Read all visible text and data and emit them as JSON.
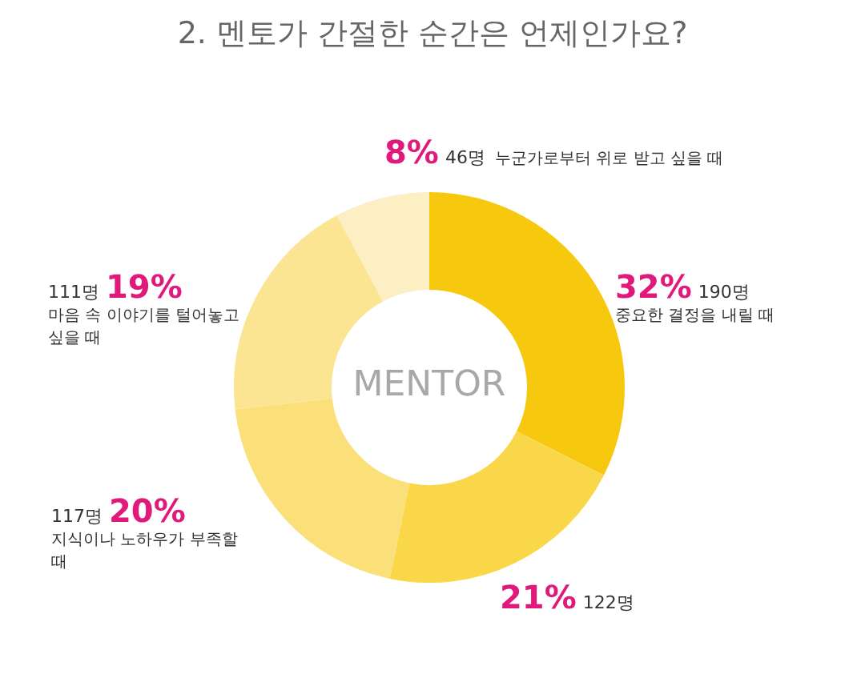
{
  "chart_data": {
    "type": "donut",
    "title": "2. 멘토가 간절한 순간은 언제인가요?",
    "categories": [
      "중요한 결정을 내릴 때",
      null,
      "지식이나 노하우가 부족할 때",
      "마음 속 이야기를 털어놓고 싶을 때",
      "누군가로부터 위로 받고 싶을 때"
    ],
    "values": [
      190,
      122,
      117,
      111,
      46
    ],
    "value_labels": [
      "32% 190명",
      "21% 122명",
      "117명 20%",
      "111명 19%",
      "8% 46명"
    ],
    "colors": [
      "#f7c90e",
      "#f9d749",
      "#fbdf78",
      "#fbe592",
      "#fcefc4"
    ],
    "annotations": [
      "MENTOR"
    ],
    "legend": false
  }
}
